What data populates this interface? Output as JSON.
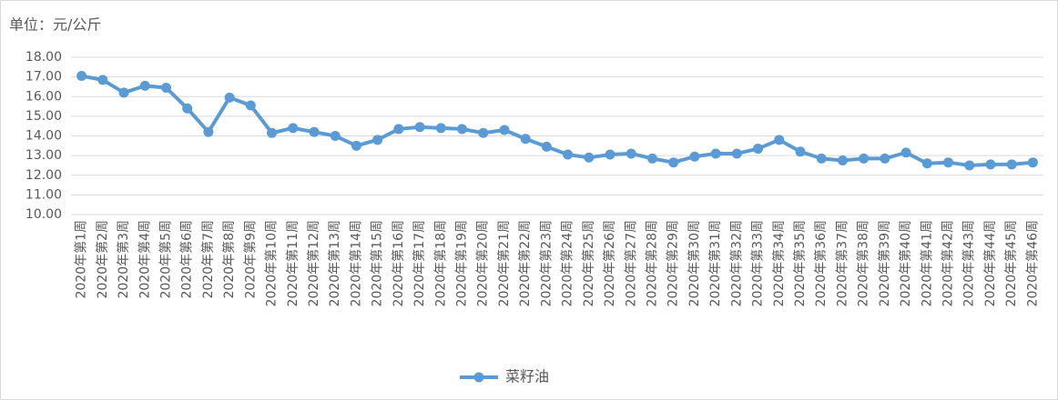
{
  "chart_data": {
    "type": "line",
    "unit_label": "单位：元/公斤",
    "categories": [
      "2020年第1周",
      "2020年第2周",
      "2020年第3周",
      "2020年第4周",
      "2020年第5周",
      "2020年第6周",
      "2020年第7周",
      "2020年第8周",
      "2020年第9周",
      "2020年第10周",
      "2020年第11周",
      "2020年第12周",
      "2020年第13周",
      "2020年第14周",
      "2020年第15周",
      "2020年第16周",
      "2020年第17周",
      "2020年第18周",
      "2020年第19周",
      "2020年第20周",
      "2020年第21周",
      "2020年第22周",
      "2020年第23周",
      "2020年第24周",
      "2020年第25周",
      "2020年第26周",
      "2020年第27周",
      "2020年第28周",
      "2020年第29周",
      "2020年第30周",
      "2020年第31周",
      "2020年第32周",
      "2020年第33周",
      "2020年第34周",
      "2020年第35周",
      "2020年第36周",
      "2020年第37周",
      "2020年第38周",
      "2020年第39周",
      "2020年第40周",
      "2020年第41周",
      "2020年第42周",
      "2020年第43周",
      "2020年第44周",
      "2020年第45周",
      "2020年第46周"
    ],
    "series": [
      {
        "name": "菜籽油",
        "color": "#5b9bd5",
        "values": [
          17.05,
          16.85,
          16.2,
          16.55,
          16.45,
          15.4,
          14.2,
          15.95,
          15.55,
          14.15,
          14.4,
          14.2,
          14.0,
          13.5,
          13.8,
          14.35,
          14.45,
          14.4,
          14.35,
          14.15,
          14.3,
          13.85,
          13.45,
          13.05,
          12.9,
          13.05,
          13.1,
          12.85,
          12.65,
          12.95,
          13.1,
          13.1,
          13.35,
          13.8,
          13.2,
          12.85,
          12.75,
          12.85,
          12.85,
          13.15,
          12.6,
          12.65,
          12.5,
          12.55,
          12.55,
          12.65
        ]
      }
    ],
    "ylim": [
      10,
      18
    ],
    "yticks": [
      {
        "value": 10,
        "label": "10.00"
      },
      {
        "value": 11,
        "label": "11.00"
      },
      {
        "value": 12,
        "label": "12.00"
      },
      {
        "value": 13,
        "label": "13.00"
      },
      {
        "value": 14,
        "label": "14.00"
      },
      {
        "value": 15,
        "label": "15.00"
      },
      {
        "value": 16,
        "label": "16.00"
      },
      {
        "value": 17,
        "label": "17.00"
      },
      {
        "value": 18,
        "label": "18.00"
      }
    ],
    "grid": true,
    "legend": "bottom"
  }
}
